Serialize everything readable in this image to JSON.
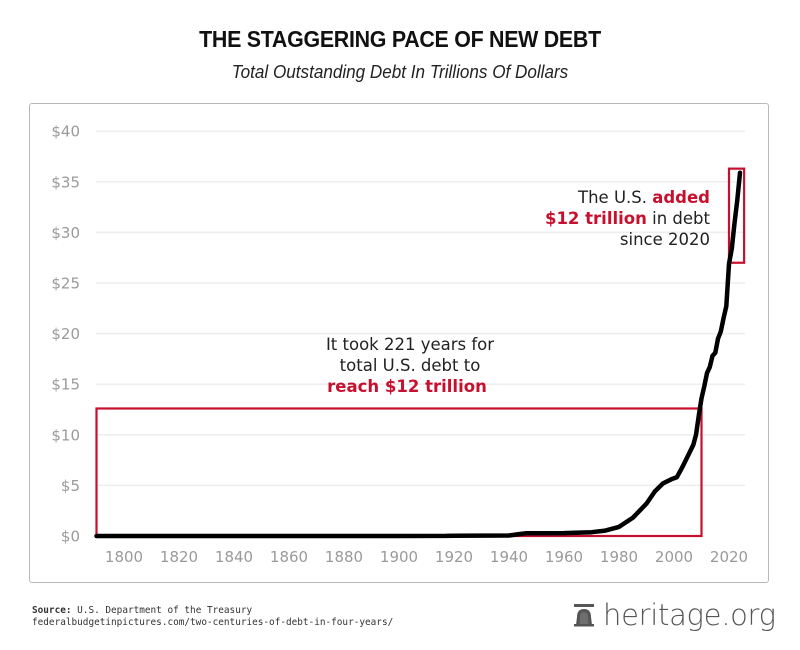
{
  "header": {
    "title": "THE STAGGERING PACE OF NEW DEBT",
    "subtitle": "Total Outstanding Debt In Trillions Of Dollars"
  },
  "colors": {
    "line": "#000000",
    "highlight_red": "#c8102e",
    "gridline": "#eeeeee",
    "tick_label": "#9a9a9a",
    "frame_border": "#b9b9b9"
  },
  "annotations": {
    "left": {
      "line1": "It took 221 years for",
      "line2": "total U.S. debt to",
      "line3_red": "reach $12 trillion"
    },
    "right": {
      "line1_plain": "The U.S. ",
      "line1_red": "added",
      "line2_red": "$12 trillion",
      "line2_plain": " in debt",
      "line3": "since 2020"
    }
  },
  "footer": {
    "source_label": "Source:",
    "source_text": " U.S. Department of the Treasury",
    "source_url": "federalbudgetinpictures.com/two-centuries-of-debt-in-four-years/",
    "brand": "heritage.org",
    "brand_icon": "liberty-bell-icon"
  },
  "chart_data": {
    "type": "line",
    "title": "THE STAGGERING PACE OF NEW DEBT",
    "subtitle": "Total Outstanding Debt In Trillions Of Dollars",
    "xlabel": "",
    "ylabel": "",
    "xlim": [
      1790,
      2025
    ],
    "ylim": [
      0,
      40
    ],
    "grid": "horizontal",
    "legend": "none",
    "x_ticks": [
      "1800",
      "1820",
      "1840",
      "1860",
      "1880",
      "1900",
      "1920",
      "1940",
      "1960",
      "1980",
      "2000",
      "2020"
    ],
    "y_ticks": [
      "$0",
      "$5",
      "$10",
      "$15",
      "$20",
      "$25",
      "$30",
      "$35",
      "$40"
    ],
    "series": [
      {
        "name": "Total Outstanding Debt (trillions $)",
        "x": [
          1790,
          1850,
          1900,
          1917,
          1920,
          1940,
          1944,
          1946,
          1960,
          1970,
          1975,
          1980,
          1985,
          1990,
          1993,
          1996,
          1999,
          2001,
          2003,
          2005,
          2007,
          2008,
          2009,
          2010,
          2011,
          2012,
          2013,
          2014,
          2015,
          2016,
          2017,
          2018,
          2019,
          2020,
          2021,
          2022,
          2023,
          2024
        ],
        "values": [
          0.0,
          0.0,
          0.0,
          0.01,
          0.03,
          0.05,
          0.2,
          0.27,
          0.29,
          0.38,
          0.53,
          0.9,
          1.8,
          3.2,
          4.4,
          5.2,
          5.6,
          5.8,
          6.8,
          7.9,
          9.0,
          10.0,
          11.9,
          13.6,
          14.8,
          16.1,
          16.7,
          17.8,
          18.1,
          19.5,
          20.2,
          21.5,
          22.7,
          26.9,
          28.4,
          30.9,
          33.2,
          35.9
        ]
      }
    ],
    "highlight_boxes": [
      {
        "label": "It took 221 years for total U.S. debt to reach $12 trillion",
        "x_range": [
          1790,
          2010
        ],
        "y_range": [
          0,
          12.6
        ],
        "color": "#c8102e"
      },
      {
        "label": "The U.S. added $12 trillion in debt since 2020",
        "x_range": [
          2020,
          2025.5
        ],
        "y_range": [
          27,
          36.3
        ],
        "color": "#c8102e"
      }
    ]
  }
}
